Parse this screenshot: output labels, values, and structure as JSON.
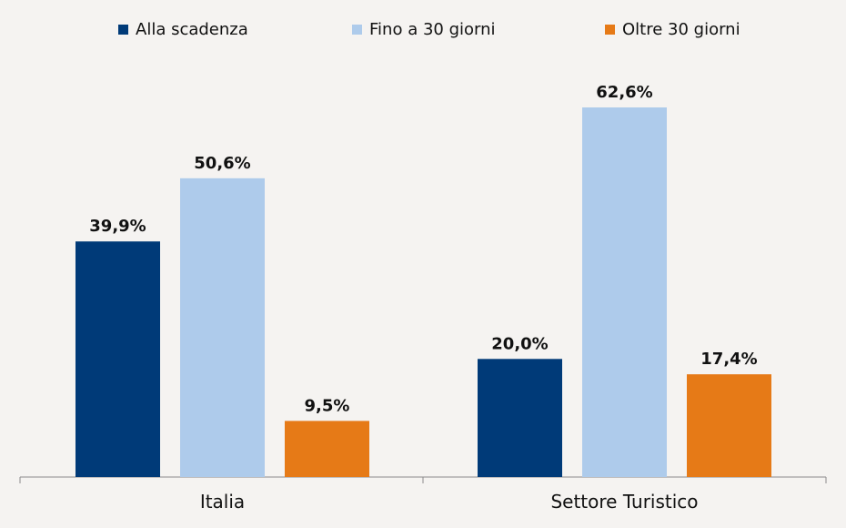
{
  "chart_data": {
    "type": "bar",
    "categories": [
      "Italia",
      "Settore Turistico"
    ],
    "series": [
      {
        "name": "Alla scadenza",
        "values": [
          39.9,
          20.0
        ],
        "labels": [
          "39,9%",
          "20,0%"
        ],
        "color": "#003a78"
      },
      {
        "name": "Fino a 30 giorni",
        "values": [
          50.6,
          62.6
        ],
        "labels": [
          "50,6%",
          "62,6%"
        ],
        "color": "#aecbeb"
      },
      {
        "name": "Oltre 30 giorni",
        "values": [
          9.5,
          17.4
        ],
        "labels": [
          "9,5%",
          "17,4%"
        ],
        "color": "#e67a17"
      }
    ],
    "ylim": [
      0,
      62.6
    ],
    "grid": false,
    "legend": "top"
  }
}
